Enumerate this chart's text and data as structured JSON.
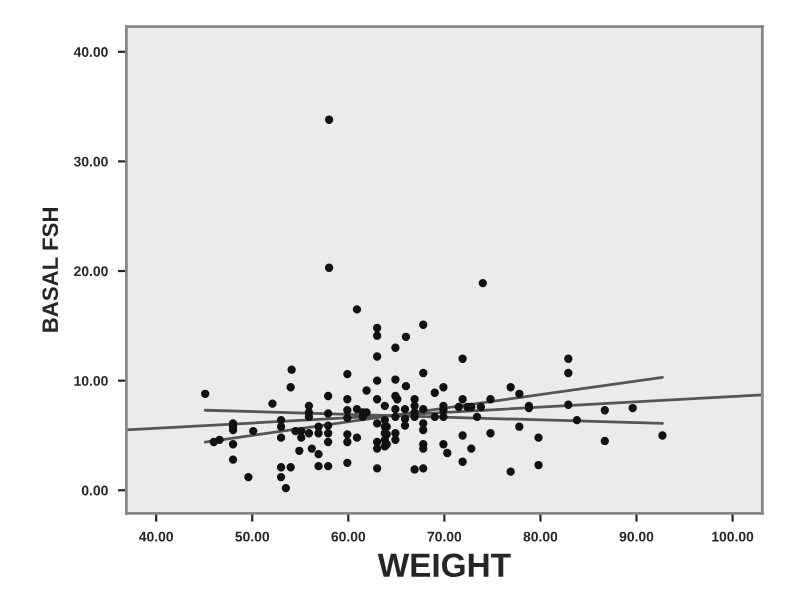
{
  "chart_data": {
    "type": "scatter",
    "xlabel": "WEIGHT",
    "ylabel": "BASAL FSH",
    "xlim": [
      36.9,
      103.1
    ],
    "ylim": [
      -2.1,
      42.3
    ],
    "xticks": [
      {
        "value": 40,
        "label": "40.00"
      },
      {
        "value": 50,
        "label": "50.00"
      },
      {
        "value": 60,
        "label": "60.00"
      },
      {
        "value": 70,
        "label": "70.00"
      },
      {
        "value": 80,
        "label": "80.00"
      },
      {
        "value": 90,
        "label": "90.00"
      },
      {
        "value": 100,
        "label": "100.00"
      }
    ],
    "yticks": [
      {
        "value": 0,
        "label": "0.00"
      },
      {
        "value": 10,
        "label": "10.00"
      },
      {
        "value": 20,
        "label": "20.00"
      },
      {
        "value": 30,
        "label": "30.00"
      },
      {
        "value": 40,
        "label": "40.00"
      }
    ],
    "grid": false,
    "legend": false,
    "marker": "circle",
    "series": [
      {
        "color": "#111111",
        "x": [
          45.1,
          46.0,
          46.6,
          48.0,
          48.0,
          48.0,
          48.0,
          48.0,
          49.6,
          50.1,
          52.1,
          53.0,
          53.0,
          53.0,
          53.0,
          53.0,
          53.5,
          54.0,
          54.1,
          54.0,
          54.5,
          55.1,
          55.1,
          54.9,
          55.9,
          55.9,
          55.9,
          55.9,
          56.2,
          56.9,
          56.9,
          56.9,
          56.9,
          57.9,
          57.9,
          57.9,
          57.9,
          57.9,
          57.9,
          58.0,
          58.0,
          59.9,
          59.9,
          59.9,
          59.9,
          59.9,
          59.9,
          59.9,
          60.9,
          61.5,
          61.5,
          60.9,
          60.9,
          61.9,
          61.9,
          63.0,
          63.0,
          63.0,
          63.0,
          63.0,
          63.0,
          63.0,
          63.0,
          63.0,
          64.0,
          64.0,
          64.0,
          65.1,
          74.0,
          67.8,
          66.0,
          64.9,
          71.9,
          67.8,
          64.9,
          66.0,
          69.0,
          69.9,
          64.9,
          66.9,
          63.8,
          64.9,
          65.9,
          66.9,
          67.8,
          69.9,
          69.9,
          71.9,
          71.5,
          72.4,
          72.8,
          73.8,
          74.8,
          76.9,
          77.8,
          78.8,
          78.8,
          82.9,
          82.9,
          82.9,
          86.7,
          89.6,
          83.8,
          92.7,
          86.7,
          79.8,
          77.8,
          74.8,
          73.4,
          71.9,
          72.8,
          71.9,
          69.9,
          70.3,
          67.8,
          67.8,
          67.8,
          66.9,
          76.9,
          79.8,
          67.8,
          67.8,
          65.9,
          65.9,
          64.9,
          63.8,
          63.8,
          63.8,
          63.8,
          63.8,
          64.9,
          64.9,
          66.9,
          66.9,
          69.0,
          69.9
        ],
        "values": [
          8.8,
          4.4,
          4.6,
          6.1,
          5.8,
          5.5,
          4.2,
          2.8,
          1.2,
          5.4,
          7.9,
          6.4,
          5.8,
          4.8,
          2.1,
          1.2,
          0.2,
          2.1,
          11.0,
          9.4,
          5.4,
          5.4,
          4.8,
          3.6,
          7.7,
          7.1,
          6.7,
          5.2,
          3.8,
          5.8,
          5.2,
          3.3,
          2.2,
          8.6,
          7.0,
          5.9,
          5.2,
          4.4,
          2.2,
          33.8,
          20.3,
          10.6,
          8.3,
          7.3,
          6.6,
          5.1,
          4.4,
          2.5,
          7.4,
          7.1,
          6.7,
          4.8,
          16.5,
          9.1,
          7.1,
          14.8,
          14.1,
          12.2,
          10.0,
          8.3,
          6.1,
          4.4,
          3.8,
          2.0,
          5.8,
          5.1,
          4.2,
          8.3,
          18.9,
          15.1,
          14.0,
          13.0,
          12.0,
          10.7,
          10.1,
          9.5,
          8.9,
          9.4,
          8.6,
          8.3,
          7.7,
          7.4,
          7.4,
          7.7,
          7.4,
          7.7,
          7.3,
          8.3,
          7.6,
          7.6,
          7.6,
          7.6,
          8.3,
          9.4,
          8.8,
          7.7,
          7.5,
          12.0,
          10.7,
          7.8,
          7.3,
          7.5,
          6.4,
          5.0,
          4.5,
          4.8,
          5.8,
          5.2,
          6.7,
          5.0,
          3.8,
          2.6,
          4.2,
          3.4,
          4.2,
          3.8,
          2.0,
          1.9,
          1.7,
          2.3,
          6.1,
          5.5,
          6.5,
          5.9,
          6.7,
          6.4,
          5.8,
          5.2,
          4.6,
          4.0,
          5.2,
          4.6,
          7.1,
          6.7,
          6.7,
          6.7
        ]
      },
      {
        "type": "line",
        "color": "#555555",
        "marker": "none",
        "x": [
          36.9,
          103.1
        ],
        "values": [
          5.5,
          8.7
        ]
      },
      {
        "type": "line",
        "color": "#555555",
        "marker": "none",
        "x": [
          45.1,
          92.7
        ],
        "values": [
          7.3,
          6.1
        ]
      },
      {
        "type": "line",
        "color": "#555555",
        "marker": "none",
        "x": [
          45.1,
          92.7
        ],
        "values": [
          4.4,
          10.3
        ]
      }
    ]
  }
}
